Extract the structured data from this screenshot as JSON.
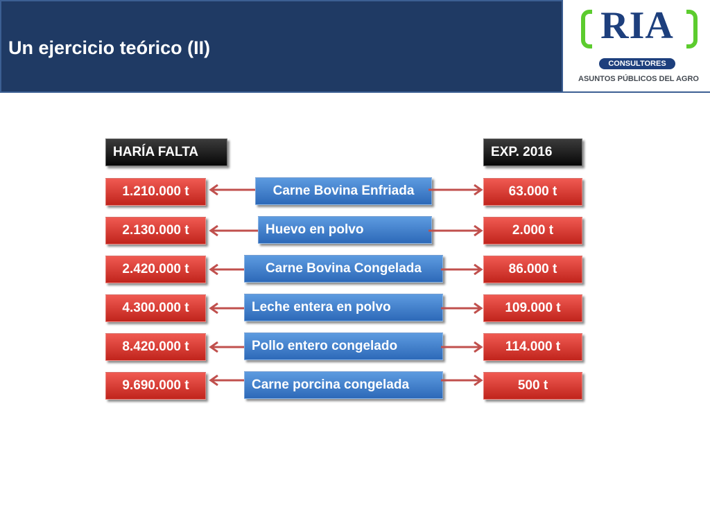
{
  "header": {
    "title": "Un ejercicio teórico (II)"
  },
  "logo": {
    "brand": "RIA",
    "sub": "CONSULTORES",
    "tagline": "ASUNTOS PÚBLICOS DEL AGRO"
  },
  "columns": {
    "left_header": "HARÍA FALTA",
    "right_header": "EXP. 2016"
  },
  "rows": [
    {
      "needed": "1.210.000 t",
      "product": "Carne Bovina Enfriada",
      "exported": "63.000 t"
    },
    {
      "needed": "2.130.000 t",
      "product": "Huevo en polvo",
      "exported": "2.000 t"
    },
    {
      "needed": "2.420.000 t",
      "product": "Carne Bovina Congelada",
      "exported": "86.000 t"
    },
    {
      "needed": "4.300.000 t",
      "product": "Leche entera en polvo",
      "exported": "109.000 t"
    },
    {
      "needed": "8.420.000 t",
      "product": "Pollo entero congelado",
      "exported": "114.000 t"
    },
    {
      "needed": "9.690.000 t",
      "product": "Carne porcina congelada",
      "exported": "500 t"
    }
  ],
  "colors": {
    "header_bg": "#1f3a64",
    "red_box": "#d9362e",
    "blue_box": "#3a7cc9",
    "arrow": "#c0504d",
    "logo_green": "#5ccc2e",
    "logo_blue": "#1d3f7d"
  }
}
